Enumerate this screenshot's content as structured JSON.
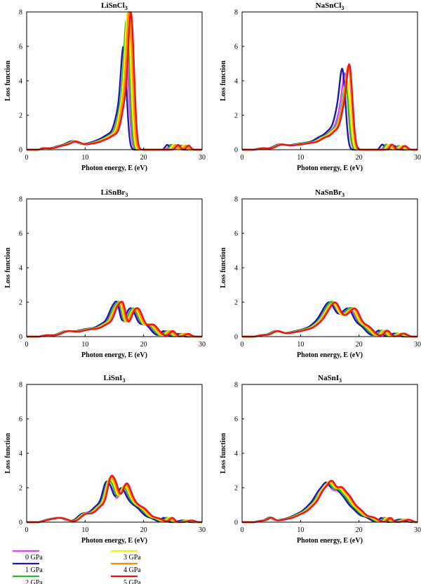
{
  "figure": {
    "legend": {
      "placement": "bottom-left",
      "entries": [
        {
          "name": "0 GPa",
          "color": "#e040fb"
        },
        {
          "name": "1 GPa",
          "color": "#1a1aa8"
        },
        {
          "name": "2 GPa",
          "color": "#22c022"
        },
        {
          "name": "3 GPa",
          "color": "#ffee00"
        },
        {
          "name": "4 GPa",
          "color": "#ff8c00"
        },
        {
          "name": "5 GPa",
          "color": "#e8141b"
        }
      ]
    }
  },
  "chart_data": [
    {
      "type": "line",
      "title": "LiSnCl",
      "title_sub": "3",
      "xlabel": "Photon energy, E (eV)",
      "ylabel": "Loss function",
      "xlim": [
        0,
        30
      ],
      "ylim": [
        0,
        8
      ],
      "xticks": [
        0,
        10,
        20,
        30
      ],
      "yticks": [
        0,
        2,
        4,
        6,
        8
      ],
      "grid": false,
      "series_base": {
        "peaks": [
          [
            3,
            0.08,
            0.8
          ],
          [
            6,
            0.22,
            1.2
          ],
          [
            8,
            0.38,
            0.9
          ],
          [
            10.5,
            0.3,
            1.4
          ],
          [
            13,
            0.45,
            1.2
          ],
          [
            14.8,
            0.7,
            1.0
          ],
          [
            16,
            1.6,
            0.6
          ],
          [
            16.9,
            4.9,
            0.45
          ],
          [
            17.4,
            1.2,
            0.4
          ],
          [
            24.6,
            0.28,
            0.35
          ],
          [
            26.3,
            0.24,
            0.35
          ]
        ],
        "amp_scale": [
          1.0,
          0.98,
          1.25,
          1.33,
          1.38,
          1.35
        ],
        "shift": [
          0,
          -0.35,
          0.15,
          0.35,
          0.6,
          0.85
        ]
      }
    },
    {
      "type": "line",
      "title": "NaSnCl",
      "title_sub": "3",
      "xlabel": "Photon energy, E (eV)",
      "ylabel": "Loss function",
      "xlim": [
        0,
        30
      ],
      "ylim": [
        0,
        8
      ],
      "xticks": [
        0,
        10,
        20,
        30
      ],
      "yticks": [
        0,
        2,
        4,
        6,
        8
      ],
      "grid": false,
      "series_base": {
        "peaks": [
          [
            3.5,
            0.08,
            0.8
          ],
          [
            6.5,
            0.28,
            1.0
          ],
          [
            9,
            0.22,
            1.2
          ],
          [
            11.5,
            0.35,
            1.3
          ],
          [
            13.8,
            0.6,
            1.0
          ],
          [
            15.5,
            0.9,
            0.8
          ],
          [
            16.8,
            1.8,
            0.6
          ],
          [
            17.6,
            3.3,
            0.45
          ],
          [
            18.1,
            0.8,
            0.4
          ],
          [
            24.6,
            0.3,
            0.35
          ],
          [
            26.7,
            0.22,
            0.4
          ]
        ],
        "amp_scale": [
          1.0,
          1.05,
          0.82,
          0.9,
          1.12,
          1.15
        ],
        "shift": [
          0,
          -0.4,
          0.1,
          0.3,
          0.55,
          0.7
        ]
      }
    },
    {
      "type": "line",
      "title": "LiSnBr",
      "title_sub": "3",
      "xlabel": "Photon energy, E (eV)",
      "ylabel": "Loss function",
      "xlim": [
        0,
        30
      ],
      "ylim": [
        0,
        8
      ],
      "xticks": [
        0,
        10,
        20,
        30
      ],
      "yticks": [
        0,
        2,
        4,
        6,
        8
      ],
      "grid": false,
      "series_base": {
        "peaks": [
          [
            3.5,
            0.08,
            0.8
          ],
          [
            6.8,
            0.3,
            1.2
          ],
          [
            9.5,
            0.25,
            1.2
          ],
          [
            11.5,
            0.35,
            1.3
          ],
          [
            13.5,
            0.6,
            1.0
          ],
          [
            15,
            1.4,
            0.7
          ],
          [
            15.8,
            1.0,
            0.45
          ],
          [
            17.5,
            1.1,
            0.8
          ],
          [
            18.5,
            0.9,
            0.7
          ],
          [
            20.5,
            0.7,
            1.0
          ],
          [
            23.8,
            0.32,
            0.5
          ],
          [
            26.3,
            0.16,
            0.5
          ]
        ],
        "amp_scale": [
          0.95,
          1.0,
          1.02,
          1.0,
          1.05,
          1.08
        ],
        "shift": [
          0,
          -0.25,
          0.15,
          0.35,
          0.55,
          0.8
        ]
      }
    },
    {
      "type": "line",
      "title": "NaSnBr",
      "title_sub": "3",
      "xlabel": "Photon energy, E (eV)",
      "ylabel": "Loss function",
      "xlim": [
        0,
        30
      ],
      "ylim": [
        0,
        8
      ],
      "xticks": [
        0,
        10,
        20,
        30
      ],
      "yticks": [
        0,
        2,
        4,
        6,
        8
      ],
      "grid": false,
      "series_base": {
        "peaks": [
          [
            3.5,
            0.08,
            0.8
          ],
          [
            5.8,
            0.3,
            0.9
          ],
          [
            8.5,
            0.2,
            1.3
          ],
          [
            11,
            0.35,
            1.3
          ],
          [
            13,
            0.6,
            1.0
          ],
          [
            14.3,
            0.9,
            0.8
          ],
          [
            15.5,
            1.5,
            0.8
          ],
          [
            17.2,
            0.9,
            0.8
          ],
          [
            18.6,
            1.3,
            0.8
          ],
          [
            20.5,
            0.6,
            1.0
          ],
          [
            23.8,
            0.35,
            0.5
          ],
          [
            26.5,
            0.18,
            0.6
          ]
        ],
        "amp_scale": [
          1.0,
          1.0,
          1.05,
          1.0,
          1.05,
          1.05
        ],
        "shift": [
          0,
          -0.3,
          0.1,
          0.3,
          0.5,
          0.7
        ]
      }
    },
    {
      "type": "line",
      "title": "LiSnI",
      "title_sub": "3",
      "xlabel": "Photon energy, E (eV)",
      "ylabel": "Loss function",
      "xlim": [
        0,
        30
      ],
      "ylim": [
        0,
        8
      ],
      "xticks": [
        0,
        10,
        20,
        30
      ],
      "yticks": [
        0,
        2,
        4,
        6,
        8
      ],
      "grid": false,
      "series_base": {
        "peaks": [
          [
            3.5,
            0.08,
            0.8
          ],
          [
            5.5,
            0.25,
            1.2
          ],
          [
            9.5,
            0.35,
            0.8
          ],
          [
            11,
            0.35,
            1.0
          ],
          [
            12.5,
            0.8,
            0.9
          ],
          [
            13.8,
            1.9,
            0.6
          ],
          [
            14.7,
            1.1,
            0.5
          ],
          [
            16.2,
            1.7,
            0.8
          ],
          [
            17.5,
            0.8,
            0.9
          ],
          [
            19.2,
            0.7,
            1.0
          ],
          [
            21.5,
            0.2,
            0.8
          ],
          [
            23.8,
            0.25,
            0.4
          ],
          [
            27,
            0.1,
            0.6
          ]
        ],
        "amp_scale": [
          0.9,
          0.95,
          1.0,
          1.05,
          1.1,
          1.15
        ],
        "shift": [
          0,
          -0.25,
          0.15,
          0.35,
          0.55,
          0.75
        ]
      }
    },
    {
      "type": "line",
      "title": "NaSnI",
      "title_sub": "3",
      "xlabel": "Photon energy, E (eV)",
      "ylabel": "Loss function",
      "xlim": [
        0,
        30
      ],
      "ylim": [
        0,
        8
      ],
      "xticks": [
        0,
        10,
        20,
        30
      ],
      "yticks": [
        0,
        2,
        4,
        6,
        8
      ],
      "grid": false,
      "series_base": {
        "peaks": [
          [
            3.5,
            0.08,
            0.8
          ],
          [
            4.8,
            0.22,
            0.5
          ],
          [
            7.5,
            0.15,
            1.5
          ],
          [
            10,
            0.4,
            1.2
          ],
          [
            12,
            0.8,
            1.0
          ],
          [
            13.5,
            1.3,
            0.8
          ],
          [
            14.8,
            1.7,
            0.7
          ],
          [
            16.2,
            1.4,
            0.7
          ],
          [
            17.5,
            1.1,
            0.8
          ],
          [
            19.2,
            0.7,
            1.0
          ],
          [
            21.5,
            0.25,
            0.8
          ],
          [
            24.3,
            0.25,
            0.4
          ],
          [
            27.5,
            0.15,
            0.8
          ]
        ],
        "amp_scale": [
          0.95,
          1.0,
          1.0,
          1.05,
          1.08,
          1.1
        ],
        "shift": [
          0,
          -0.3,
          0.1,
          0.3,
          0.5,
          0.7
        ]
      }
    }
  ]
}
